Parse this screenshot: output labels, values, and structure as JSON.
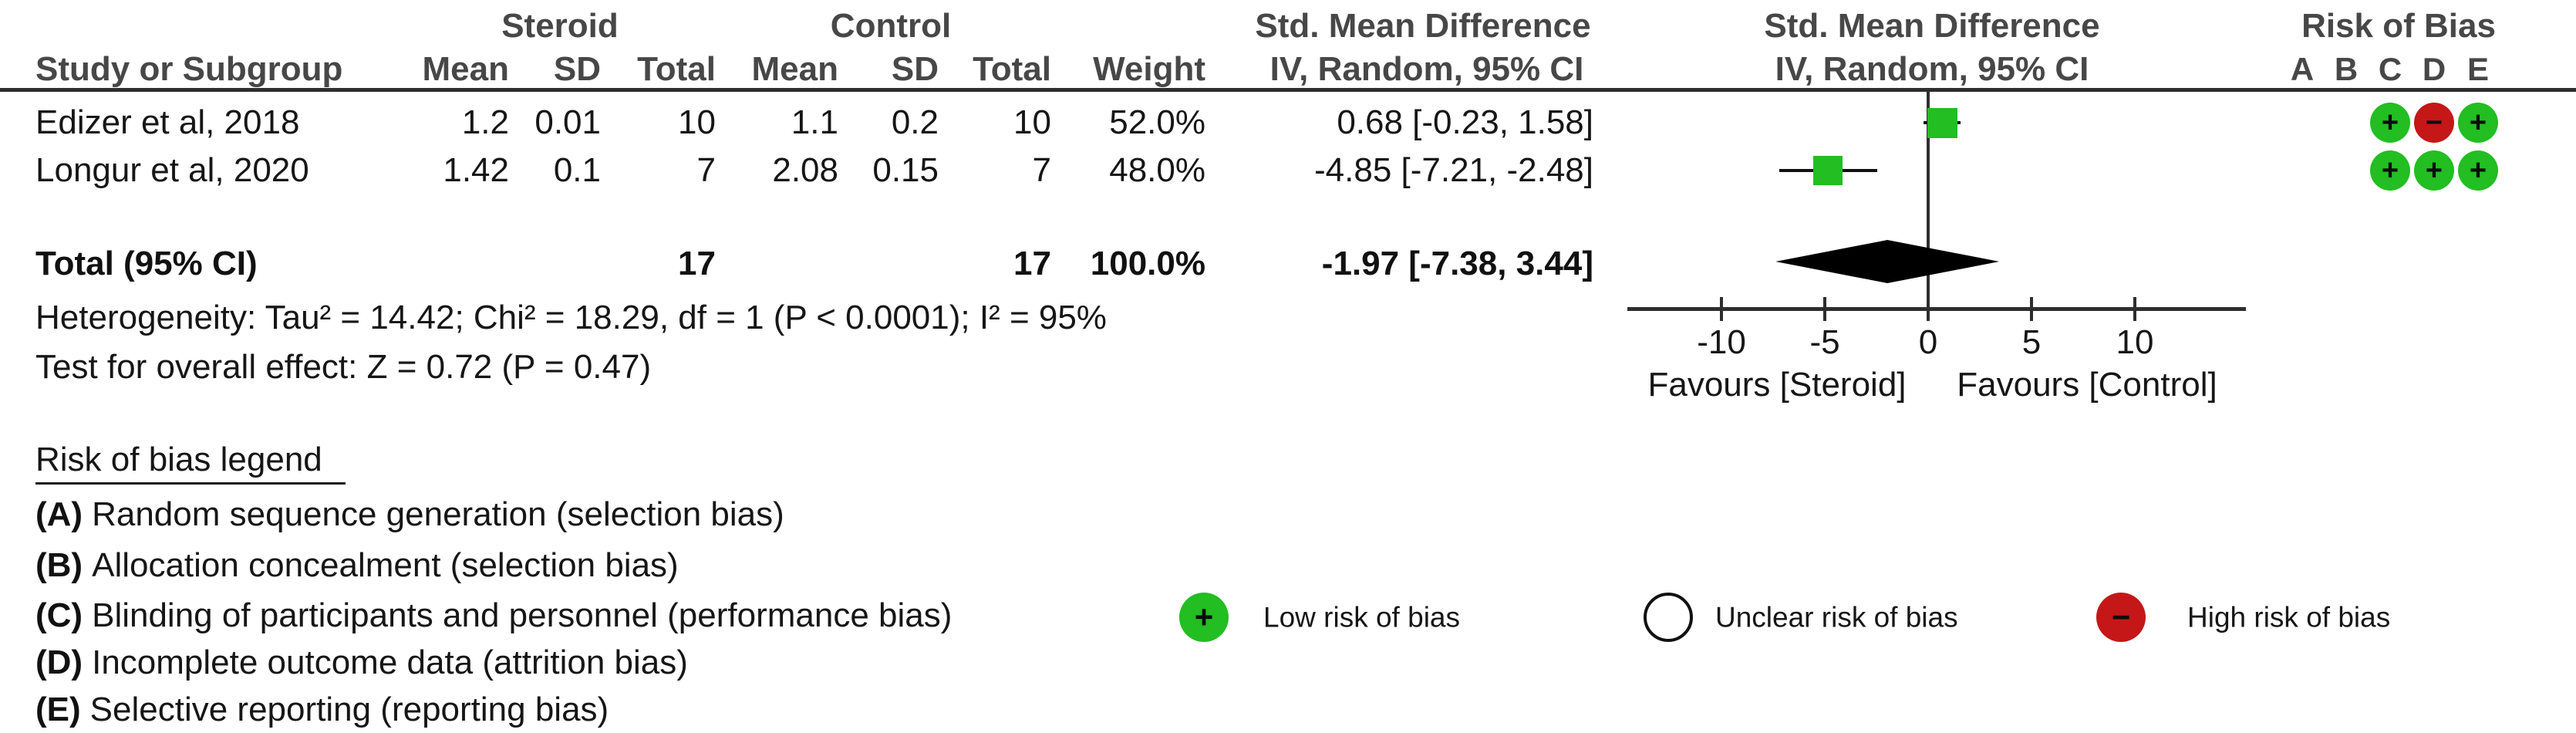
{
  "header": {
    "group_steroid": "Steroid",
    "group_control": "Control",
    "smd_text_col": "Std. Mean Difference",
    "smd_plot_col": "Std. Mean Difference",
    "rob_col": "Risk of Bias",
    "study": "Study or Subgroup",
    "mean": "Mean",
    "sd": "SD",
    "total": "Total",
    "weight": "Weight",
    "iv_text_col": "IV, Random, 95% CI",
    "iv_plot_col": "IV, Random, 95% CI",
    "rob_letters": [
      "A",
      "B",
      "C",
      "D",
      "E"
    ]
  },
  "chart_data": {
    "type": "forest",
    "effect_measure": "Std. Mean Difference",
    "method": "IV, Random, 95% CI",
    "studies": [
      {
        "name": "Edizer et al, 2018",
        "steroid_mean": "1.2",
        "steroid_sd": "0.01",
        "steroid_total": "10",
        "control_mean": "1.1",
        "control_sd": "0.2",
        "control_total": "10",
        "weight": "52.0%",
        "smd": 0.68,
        "ci_low": -0.23,
        "ci_high": 1.58,
        "ci_text": "0.68 [-0.23, 1.58]",
        "rob": [
          "",
          "",
          "low",
          "high",
          "low"
        ]
      },
      {
        "name": "Longur et al, 2020",
        "steroid_mean": "1.42",
        "steroid_sd": "0.1",
        "steroid_total": "7",
        "control_mean": "2.08",
        "control_sd": "0.15",
        "control_total": "7",
        "weight": "48.0%",
        "smd": -4.85,
        "ci_low": -7.21,
        "ci_high": -2.48,
        "ci_text": "-4.85 [-7.21, -2.48]",
        "rob": [
          "",
          "",
          "low",
          "low",
          "low"
        ]
      }
    ],
    "total": {
      "label": "Total (95% CI)",
      "steroid_total": "17",
      "control_total": "17",
      "weight": "100.0%",
      "smd": -1.97,
      "ci_low": -7.38,
      "ci_high": 3.44,
      "ci_text": "-1.97 [-7.38, 3.44]"
    },
    "heterogeneity": "Heterogeneity: Tau² = 14.42; Chi² = 18.29, df = 1 (P < 0.0001); I² = 95%",
    "overall_effect": "Test for overall effect: Z = 0.72 (P = 0.47)",
    "axis": {
      "ticks": [
        -10,
        -5,
        0,
        5,
        10
      ],
      "tick_labels": [
        "-10",
        "-5",
        "0",
        "5",
        "10"
      ],
      "xmin": -14.5,
      "xmax": 15.4,
      "grid": false
    },
    "favours_left": "Favours [Steroid]",
    "favours_right": "Favours [Control]",
    "marker_color": "#22BE22",
    "diamond_color": "#000000"
  },
  "rob_legend": {
    "title": "Risk of bias legend",
    "items": [
      {
        "label": "(A)",
        "text": "Random sequence generation (selection bias)"
      },
      {
        "label": "(B)",
        "text": "Allocation concealment (selection bias)"
      },
      {
        "label": "(C)",
        "text": "Blinding of participants and personnel (performance bias)"
      },
      {
        "label": "(D)",
        "text": "Incomplete outcome data (attrition bias)"
      },
      {
        "label": "(E)",
        "text": "Selective reporting (reporting bias)"
      }
    ]
  },
  "rob_key": [
    {
      "type": "low",
      "sign": "+",
      "color": "#22BE22",
      "label": "Low risk of bias"
    },
    {
      "type": "unclear",
      "sign": "",
      "color": "#FFFFFF",
      "label": "Unclear risk of bias"
    },
    {
      "type": "high",
      "sign": "−",
      "color": "#C51717",
      "label": "High risk of bias"
    }
  ]
}
